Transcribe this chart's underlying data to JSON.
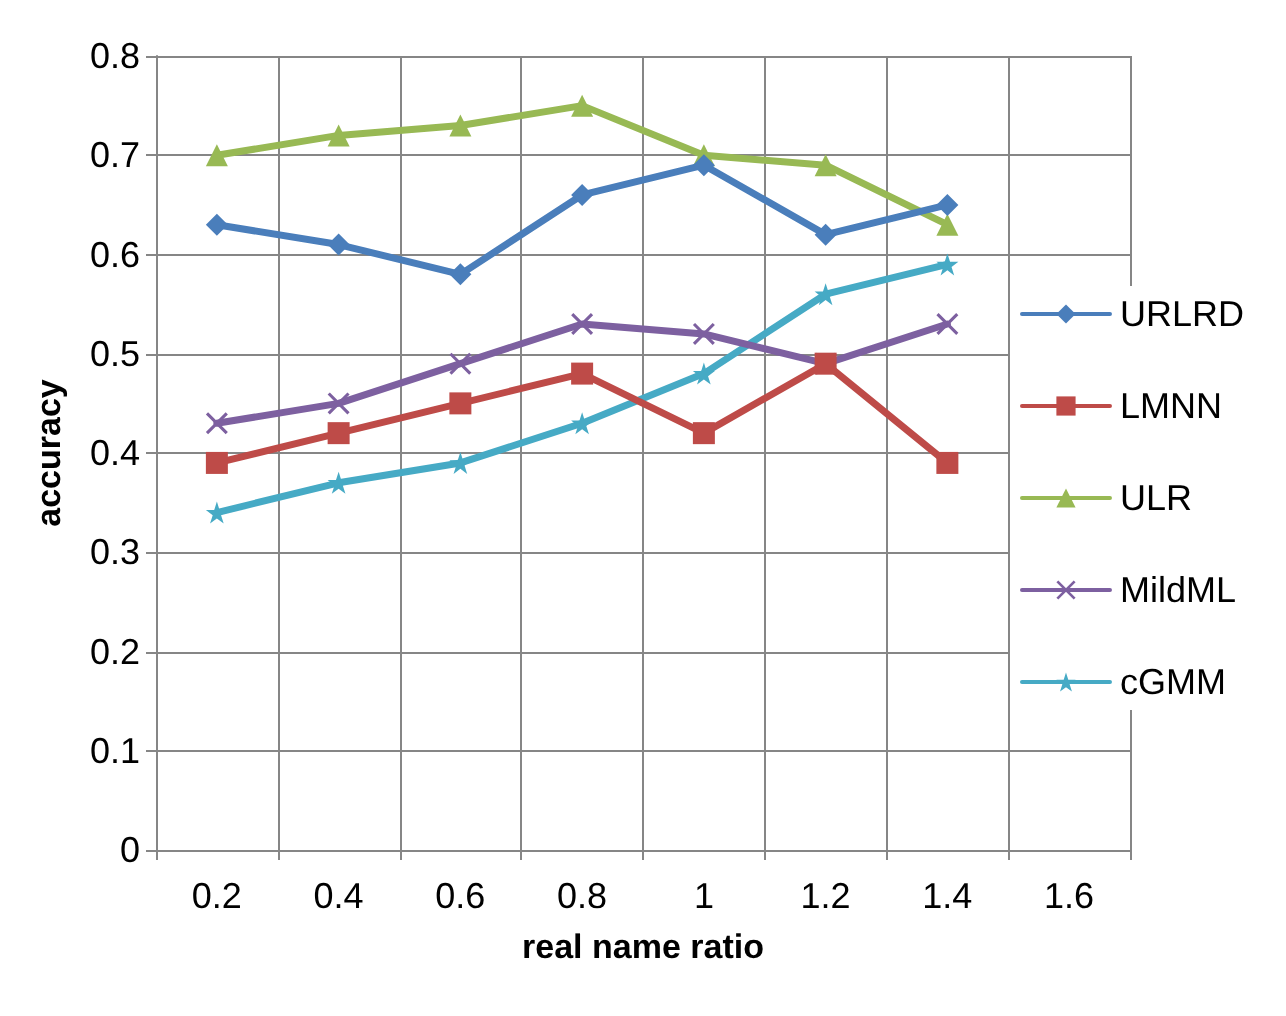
{
  "chart_data": {
    "type": "line",
    "xlabel": "real name ratio",
    "ylabel": "accuracy",
    "categories": [
      "0.2",
      "0.4",
      "0.6",
      "0.8",
      "1",
      "1.2",
      "1.4",
      "1.6"
    ],
    "series": [
      {
        "name": "URLRD",
        "color": "#4a7ebb",
        "marker": "diamond",
        "values": [
          0.63,
          0.61,
          0.58,
          0.66,
          0.69,
          0.62,
          0.65,
          null
        ]
      },
      {
        "name": "LMNN",
        "color": "#be4b48",
        "marker": "square",
        "values": [
          0.39,
          0.42,
          0.45,
          0.48,
          0.42,
          0.49,
          0.39,
          null
        ]
      },
      {
        "name": "ULR",
        "color": "#98b954",
        "marker": "triangle",
        "values": [
          0.7,
          0.72,
          0.73,
          0.75,
          0.7,
          0.69,
          0.63,
          null
        ]
      },
      {
        "name": "MildML",
        "color": "#7d60a0",
        "marker": "cross",
        "values": [
          0.43,
          0.45,
          0.49,
          0.53,
          0.52,
          0.49,
          0.53,
          null
        ]
      },
      {
        "name": "cGMM",
        "color": "#46aac5",
        "marker": "star",
        "values": [
          0.34,
          0.37,
          0.39,
          0.43,
          0.48,
          0.56,
          0.59,
          null
        ]
      }
    ],
    "ylim": [
      0,
      0.8
    ],
    "yticks": [
      0,
      0.1,
      0.2,
      0.3,
      0.4,
      0.5,
      0.6,
      0.7,
      0.8
    ],
    "grid": true,
    "legend": "right",
    "line_style": "solid"
  }
}
